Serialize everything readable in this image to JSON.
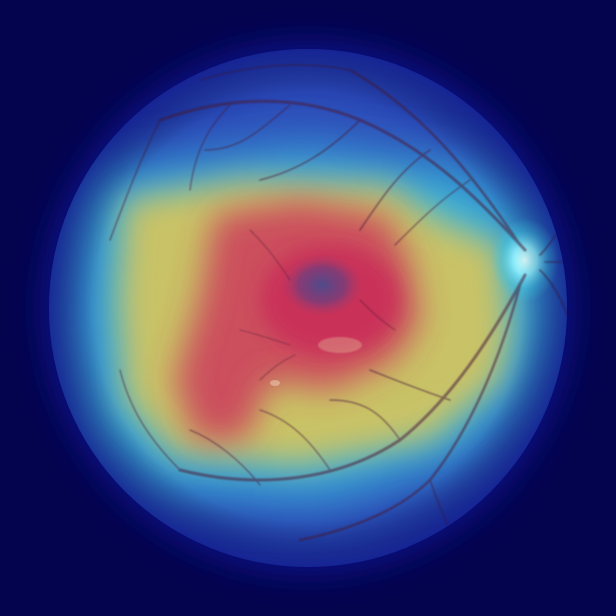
{
  "image": {
    "subject": "retinal-fundus-heatmap-overlay",
    "colors": {
      "background": "#04044e",
      "fundus_base": "#2b4fb8",
      "heat_low": "#1c3fe0",
      "heat_cyan": "#38c8e0",
      "heat_yellow": "#d8c25a",
      "heat_red": "#cc3a5c",
      "fovea": "#5a4a8a",
      "optic_disc": "#9ff4ff",
      "vessels": "#5a1f2e"
    }
  }
}
